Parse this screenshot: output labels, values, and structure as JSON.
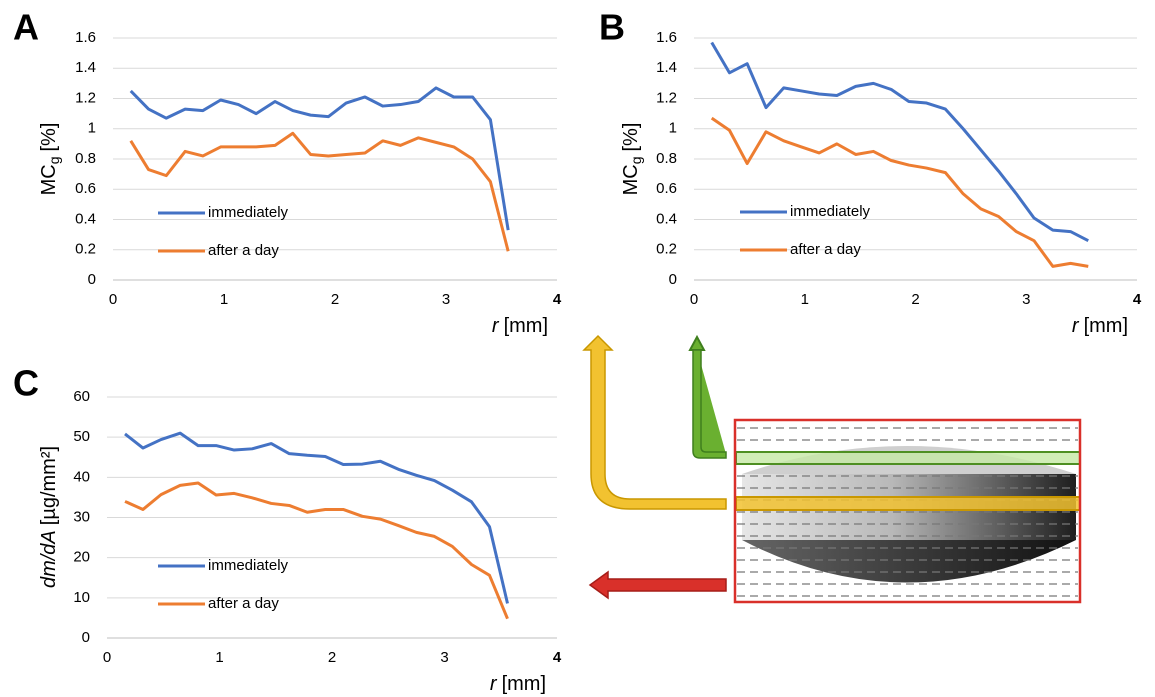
{
  "chart_data": [
    {
      "type": "line",
      "panel_label": "A",
      "x_label": {
        "var": "r",
        "unit": "[mm]"
      },
      "y_label": {
        "main": "MC",
        "sub": "g",
        "unit": "[%]"
      },
      "x": [
        0.16,
        0.32,
        0.48,
        0.65,
        0.81,
        0.97,
        1.13,
        1.29,
        1.46,
        1.62,
        1.78,
        1.94,
        2.1,
        2.27,
        2.43,
        2.59,
        2.75,
        2.91,
        3.07,
        3.24,
        3.4,
        3.56
      ],
      "series": [
        {
          "name": "immediately",
          "color": "#4472c4",
          "values": [
            1.25,
            1.13,
            1.07,
            1.13,
            1.12,
            1.19,
            1.16,
            1.1,
            1.18,
            1.12,
            1.09,
            1.08,
            1.17,
            1.21,
            1.15,
            1.16,
            1.18,
            1.27,
            1.21,
            1.21,
            1.06,
            0.33
          ]
        },
        {
          "name": "after a day",
          "color": "#ed7d31",
          "values": [
            0.92,
            0.73,
            0.69,
            0.85,
            0.82,
            0.88,
            0.88,
            0.88,
            0.89,
            0.97,
            0.83,
            0.82,
            0.83,
            0.84,
            0.92,
            0.89,
            0.94,
            0.91,
            0.88,
            0.8,
            0.65,
            0.19
          ]
        }
      ],
      "xlim": [
        0,
        4
      ],
      "xticks": [
        0,
        1,
        2,
        3,
        4
      ],
      "ylim": [
        0,
        1.6
      ],
      "yticks": [
        0,
        0.2,
        0.4,
        0.6,
        0.8,
        1,
        1.2,
        1.4,
        1.6
      ],
      "grid": true
    },
    {
      "type": "line",
      "panel_label": "B",
      "x_label": {
        "var": "r",
        "unit": "[mm]"
      },
      "y_label": {
        "main": "MC",
        "sub": "g",
        "unit": "[%]"
      },
      "x": [
        0.16,
        0.32,
        0.48,
        0.65,
        0.81,
        0.97,
        1.13,
        1.29,
        1.46,
        1.62,
        1.78,
        1.94,
        2.1,
        2.27,
        2.43,
        2.59,
        2.75,
        2.91,
        3.07,
        3.24,
        3.4,
        3.56
      ],
      "series": [
        {
          "name": "immediately",
          "color": "#4472c4",
          "values": [
            1.57,
            1.37,
            1.43,
            1.14,
            1.27,
            1.25,
            1.23,
            1.22,
            1.28,
            1.3,
            1.26,
            1.18,
            1.17,
            1.13,
            1.0,
            0.86,
            0.72,
            0.57,
            0.41,
            0.33,
            0.32,
            0.26
          ]
        },
        {
          "name": "after a day",
          "color": "#ed7d31",
          "values": [
            1.07,
            0.99,
            0.77,
            0.98,
            0.92,
            0.88,
            0.84,
            0.9,
            0.83,
            0.85,
            0.79,
            0.76,
            0.74,
            0.71,
            0.57,
            0.47,
            0.42,
            0.32,
            0.26,
            0.09,
            0.11,
            0.09
          ]
        }
      ],
      "xlim": [
        0,
        4
      ],
      "xticks": [
        0,
        1,
        2,
        3,
        4
      ],
      "ylim": [
        0,
        1.6
      ],
      "yticks": [
        0,
        0.2,
        0.4,
        0.6,
        0.8,
        1,
        1.2,
        1.4,
        1.6
      ],
      "grid": true
    },
    {
      "type": "line",
      "panel_label": "C",
      "x_label": {
        "var": "r",
        "unit": "[mm]"
      },
      "y_label": {
        "main": "dm/dA",
        "unit": "[µg/mm²]"
      },
      "x": [
        0.16,
        0.32,
        0.48,
        0.65,
        0.81,
        0.97,
        1.13,
        1.29,
        1.46,
        1.62,
        1.78,
        1.94,
        2.1,
        2.27,
        2.43,
        2.59,
        2.75,
        2.91,
        3.07,
        3.24,
        3.4,
        3.56
      ],
      "series": [
        {
          "name": "immediately",
          "color": "#4472c4",
          "values": [
            50.8,
            47.3,
            49.4,
            51.0,
            47.9,
            47.9,
            46.8,
            47.1,
            48.4,
            45.9,
            45.5,
            45.2,
            43.2,
            43.3,
            44.0,
            42.0,
            40.5,
            39.2,
            36.8,
            33.9,
            27.7,
            8.6
          ]
        },
        {
          "name": "after a day",
          "color": "#ed7d31",
          "values": [
            34.0,
            32.0,
            35.7,
            38.0,
            38.6,
            35.6,
            36.0,
            34.9,
            33.5,
            33.0,
            31.3,
            32.0,
            32.0,
            30.3,
            29.6,
            28.0,
            26.3,
            25.3,
            22.8,
            18.3,
            15.6,
            4.8
          ]
        }
      ],
      "xlim": [
        0,
        4
      ],
      "xticks": [
        0,
        1,
        2,
        3,
        4
      ],
      "ylim": [
        0,
        60
      ],
      "yticks": [
        0,
        10,
        20,
        30,
        40,
        50,
        60
      ],
      "grid": true
    }
  ]
}
